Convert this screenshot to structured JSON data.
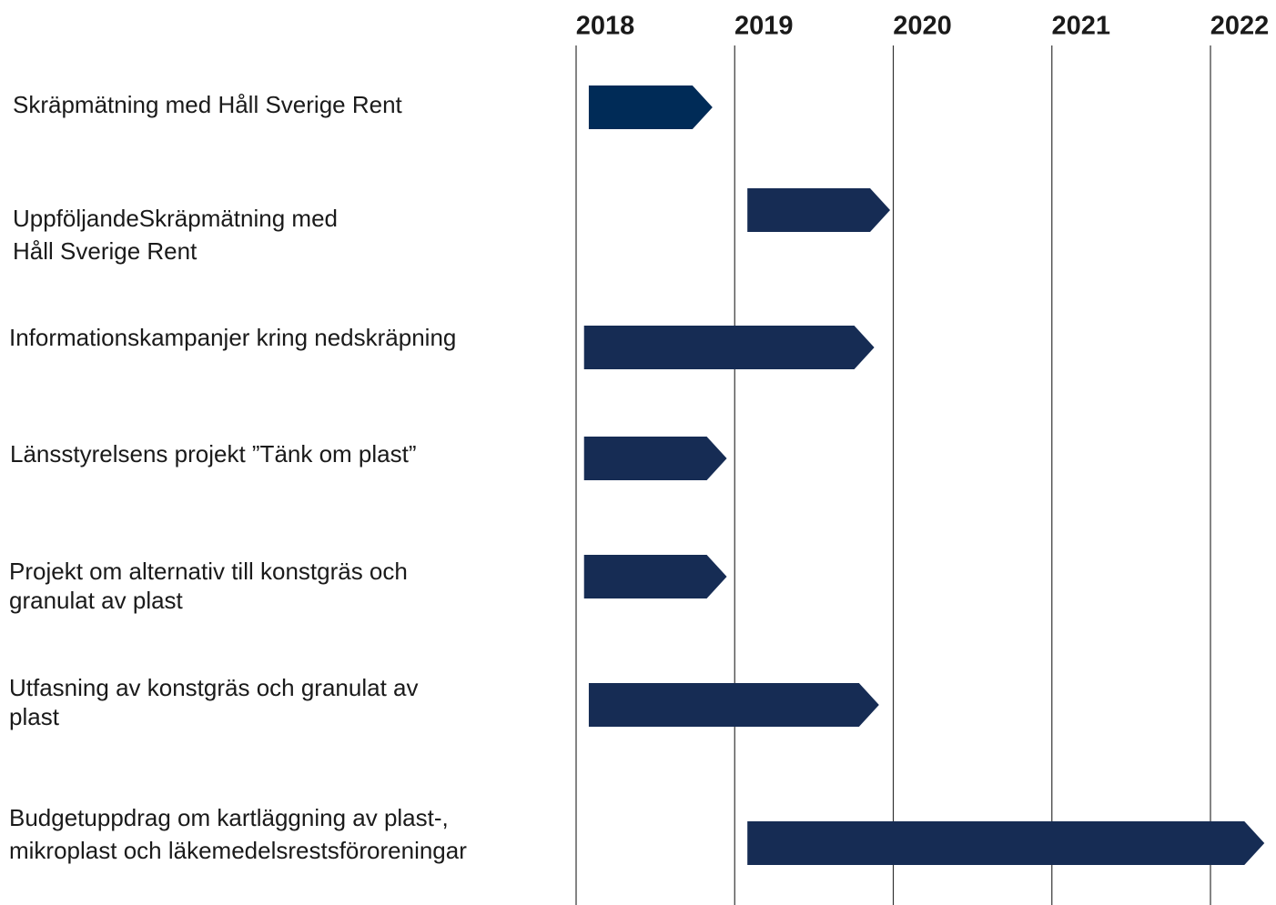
{
  "chart_data": {
    "type": "gantt",
    "xlim": [
      2018,
      2022.4
    ],
    "xticks": [
      2018,
      2019,
      2020,
      2021,
      2022
    ],
    "grid": true,
    "tasks": [
      {
        "label": [
          "Skräpmätning med Håll Sverige Rent"
        ],
        "start": 2018.08,
        "end": 2018.86,
        "color": "#002b57"
      },
      {
        "label": [
          "UppföljandeSkräpmätning med",
          "Håll Sverige Rent"
        ],
        "start": 2019.08,
        "end": 2019.98,
        "color": "#162c54"
      },
      {
        "label": [
          "Informationskampanjer kring nedskräpning"
        ],
        "start": 2018.05,
        "end": 2019.88,
        "color": "#162c54"
      },
      {
        "label": [
          "Länsstyrelsens projekt ”Tänk om plast”"
        ],
        "start": 2018.05,
        "end": 2018.95,
        "color": "#162c54"
      },
      {
        "label": [
          "Projekt om alternativ till konstgräs och",
          "granulat av plast"
        ],
        "start": 2018.05,
        "end": 2018.95,
        "color": "#162c54"
      },
      {
        "label": [
          "Utfasning av konstgräs och granulat av",
          "plast"
        ],
        "start": 2018.08,
        "end": 2019.91,
        "color": "#162c54"
      },
      {
        "label": [
          "Budgetuppdrag om kartläggning av plast-,",
          "mikroplast och läkemedelsrestsföroreningar"
        ],
        "start": 2019.08,
        "end": 2022.34,
        "color": "#162c54"
      }
    ]
  }
}
